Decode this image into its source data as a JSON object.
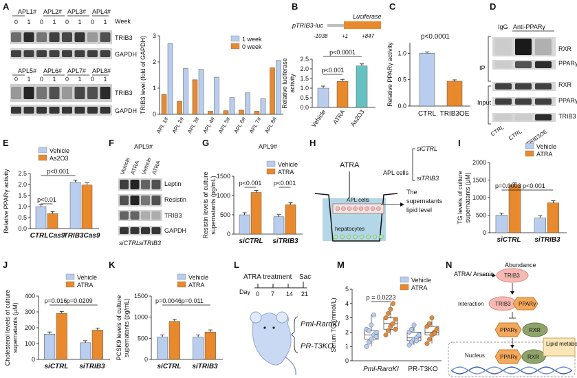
{
  "colors": {
    "blue": "#b9cdee",
    "orange": "#e8892e",
    "teal": "#66c2c2",
    "blot_dark": "#1a1a1a",
    "blot_bg": "#d9d9d9"
  },
  "panels": {
    "A": {
      "letter": "A",
      "week_label": "Week",
      "samples_top": [
        "APL1#",
        "APL2#",
        "APL3#",
        "APL4#"
      ],
      "samples_bottom": [
        "APL5#",
        "APL6#",
        "APL7#",
        "APL8#"
      ],
      "week_values": [
        "0",
        "1"
      ],
      "band_trib3": "TRIB3",
      "band_gapdh": "GAPDH"
    },
    "B": {
      "letter": "B",
      "construct": "pTRIB3-luc",
      "luciferase": "Luciferase",
      "pos_start": "-1038",
      "pos_tss": "+1",
      "pos_end": "+847",
      "p1": "p<0.001",
      "p2": "p<0.0001"
    },
    "C": {
      "letter": "C",
      "p": "p<0.0001"
    },
    "D": {
      "letter": "D",
      "igg": "IgG",
      "anti": "Anti-PPARγ",
      "ip": "IP",
      "input": "Input",
      "bands": [
        "RXR",
        "PPARγ",
        "RXR",
        "PPARγ",
        "TRIB3"
      ],
      "lanes": [
        "CTRL",
        "CTRL",
        "TRIB3OE"
      ]
    },
    "E": {
      "letter": "E",
      "p1": "p<0.01",
      "p2": "p<0.001"
    },
    "F": {
      "letter": "F",
      "title": "APL9#",
      "lanes": [
        "Vehicle",
        "ATRA",
        "Vehicle",
        "ATRA"
      ],
      "bands": [
        "Leptin",
        "Resistin",
        "TRIB3",
        "GAPDH"
      ],
      "groups": [
        "siCTRL",
        "siTRIB3"
      ]
    },
    "G": {
      "letter": "G",
      "title": "APL9#",
      "p1": "p<0.001",
      "p2": "p<0.001"
    },
    "H": {
      "letter": "H",
      "atra": "ATRA",
      "apl_cells": "APL cells",
      "si1": "siCTRL",
      "si2": "siTRIB3",
      "insert_cells": "APL cells",
      "hepatocytes": "hepatocytes",
      "out_line1": "The",
      "out_line2": "supernatants",
      "out_line3": "lipid level"
    },
    "I": {
      "letter": "I",
      "p1": "p=0.0003",
      "p2": "p<0.001"
    },
    "J": {
      "letter": "J",
      "p1": "p=0.016",
      "p2": "p=0.0209"
    },
    "K": {
      "letter": "K",
      "p1": "p=0.0046",
      "p2": "p=0.011"
    },
    "L": {
      "letter": "L",
      "treatment": "ATRA treatment",
      "sac": "Sac",
      "day": "Day",
      "days": [
        "0",
        "7",
        "14",
        "21"
      ],
      "model1": "Pml-RarαKI",
      "model2": "PR-T3KO"
    },
    "M": {
      "letter": "M",
      "p": "p = 0.0223"
    },
    "N": {
      "letter": "N",
      "stimulus": "ATRA/ Arsenic",
      "abundance": "Abundance",
      "interaction": "Interaction",
      "trib3": "TRIB3",
      "ppar": "PPARγ",
      "rxr": "RXR",
      "nucleus": "Nucleus",
      "lipid": "Lipid metabolism"
    }
  },
  "chart_data": [
    {
      "panel": "A",
      "type": "bar",
      "title": "",
      "ylabel": "TRIB3 level (fold of GAPDH)",
      "ylim": [
        0,
        3
      ],
      "yticks": [
        0,
        1,
        2,
        3
      ],
      "categories": [
        "APL 1#",
        "APL 2#",
        "APL 3#",
        "APL 4#",
        "APL 5#",
        "APL 6#",
        "APL 7#",
        "APL 8#"
      ],
      "legend": [
        "1 week",
        "0 week"
      ],
      "series": [
        {
          "name": "0 week",
          "values": [
            0.76,
            0.5,
            1.32,
            0.12,
            0.14,
            0.16,
            0.12,
            1.78
          ]
        },
        {
          "name": "1 week",
          "values": [
            2.7,
            1.75,
            1.72,
            1.42,
            0.64,
            0.82,
            0.6,
            2.06
          ]
        }
      ]
    },
    {
      "panel": "B",
      "type": "bar",
      "ylabel": "Relative luciferase activity",
      "ylim": [
        0,
        2.5
      ],
      "yticks": [
        "0.0",
        "0.5",
        "1.0",
        "1.5",
        "2.0",
        "2.5"
      ],
      "categories": [
        "Vehicle",
        "ATRA",
        "As2O3"
      ],
      "values": [
        1.0,
        1.35,
        2.15
      ]
    },
    {
      "panel": "C",
      "type": "bar",
      "ylabel": "Relative PPARγ activity",
      "ylim": [
        0,
        1.2
      ],
      "yticks": [
        "0.0",
        "0.5",
        "1.0"
      ],
      "categories": [
        "CTRL",
        "TRIB3OE"
      ],
      "values": [
        1.0,
        0.47
      ]
    },
    {
      "panel": "E",
      "type": "bar",
      "ylabel": "Relative PPARγ activity",
      "ylim": [
        0,
        2.5
      ],
      "yticks": [
        "0.0",
        "0.5",
        "1.0",
        "1.5",
        "2.0",
        "2.5"
      ],
      "categories": [
        "CTRLCas9",
        "TRIB3Cas9"
      ],
      "legend": [
        "Vehicle",
        "As2O3"
      ],
      "series": [
        {
          "name": "Vehicle",
          "values": [
            1.0,
            2.1
          ]
        },
        {
          "name": "As2O3",
          "values": [
            0.68,
            1.98
          ]
        }
      ]
    },
    {
      "panel": "G",
      "type": "bar",
      "ylabel": "Resistin levels of culture supernatants (pg/mL)",
      "ylim": [
        0,
        1500
      ],
      "yticks": [
        "0",
        "500",
        "1000",
        "1500"
      ],
      "categories": [
        "siCTRL",
        "siTRIB3"
      ],
      "legend": [
        "Vehicle",
        "ATRA"
      ],
      "series": [
        {
          "name": "Vehicle",
          "values": [
            500,
            450
          ]
        },
        {
          "name": "ATRA",
          "values": [
            1080,
            760
          ]
        }
      ]
    },
    {
      "panel": "I",
      "type": "bar",
      "ylabel": "TG levels of culture supernatants (μM)",
      "ylim": [
        0,
        2000
      ],
      "yticks": [
        "0",
        "500",
        "1000",
        "1500",
        "2000"
      ],
      "categories": [
        "siCTRL",
        "siTRIB3"
      ],
      "legend": [
        "Vehicle",
        "ATRA"
      ],
      "series": [
        {
          "name": "Vehicle",
          "values": [
            500,
            420
          ]
        },
        {
          "name": "ATRA",
          "values": [
            1360,
            850
          ]
        }
      ]
    },
    {
      "panel": "J",
      "type": "bar",
      "ylabel": "Cholesterol levels of culture supernatants (μM)",
      "ylim": [
        0,
        400
      ],
      "yticks": [
        "0",
        "100",
        "200",
        "300",
        "400"
      ],
      "categories": [
        "siCTRL",
        "siTRIB3"
      ],
      "legend": [
        "Vehicle",
        "ATRA"
      ],
      "series": [
        {
          "name": "Vehicle",
          "values": [
            160,
            105
          ]
        },
        {
          "name": "ATRA",
          "values": [
            290,
            185
          ]
        }
      ]
    },
    {
      "panel": "K",
      "type": "bar",
      "ylabel": "PCSK9 levels of culture supernatants (pg/mL)",
      "ylim": [
        0,
        1500
      ],
      "yticks": [
        "0",
        "500",
        "1000",
        "1500"
      ],
      "categories": [
        "siCTRL",
        "siTRIB3"
      ],
      "legend": [
        "Vehicle",
        "ATRA"
      ],
      "series": [
        {
          "name": "Vehicle",
          "values": [
            530,
            530
          ]
        },
        {
          "name": "ATRA",
          "values": [
            900,
            650
          ]
        }
      ]
    },
    {
      "panel": "M",
      "type": "scatter",
      "ylabel": "Serum TG (mmol/L)",
      "ylim": [
        0,
        5
      ],
      "yticks": [
        "0",
        "1",
        "2",
        "3",
        "4",
        "5"
      ],
      "categories": [
        "Pml-RarαKI",
        "PR-T3KO"
      ],
      "legend": [
        "Vehicle",
        "ATRA"
      ],
      "series": [
        {
          "name": "Vehicle",
          "group": "Pml-RarαKI",
          "values": [
            1.0,
            1.3,
            1.5,
            1.8,
            2.0,
            2.2,
            2.1,
            2.5,
            3.2,
            1.7
          ]
        },
        {
          "name": "ATRA",
          "group": "Pml-RarαKI",
          "values": [
            1.8,
            2.1,
            2.4,
            2.6,
            2.9,
            3.0,
            3.3,
            3.6,
            4.0,
            2.2
          ]
        },
        {
          "name": "Vehicle",
          "group": "PR-T3KO",
          "values": [
            1.1,
            1.3,
            1.5,
            1.6,
            1.8,
            2.0,
            2.2,
            2.5,
            1.4
          ]
        },
        {
          "name": "ATRA",
          "group": "PR-T3KO",
          "values": [
            1.2,
            1.5,
            1.8,
            2.0,
            2.2,
            2.4,
            2.6,
            3.0,
            1.9
          ]
        }
      ]
    }
  ]
}
